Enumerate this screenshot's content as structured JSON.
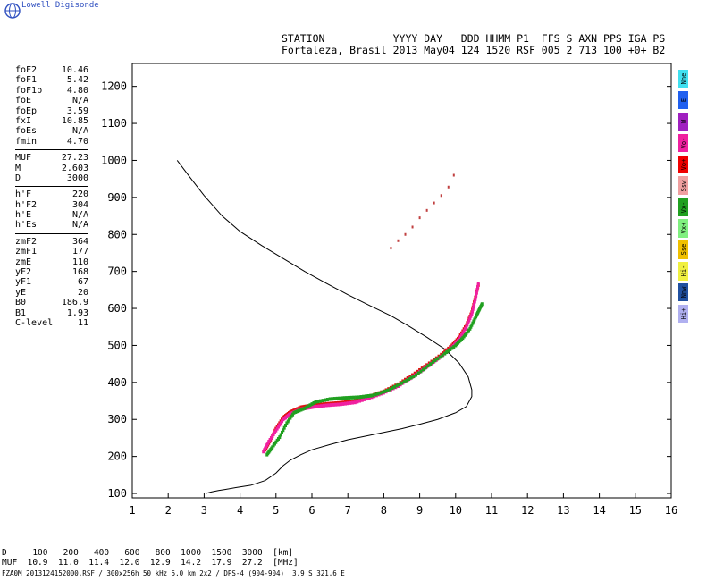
{
  "brand": "Lowell Digisonde",
  "header": {
    "line1": "STATION           YYYY DAY   DDD HHMM P1  FFS S AXN PPS IGA PS",
    "line2": "Fortaleza, Brasil 2013 May04 124 1520 RSF 005 2 713 100 +0+ B2"
  },
  "params_group1": [
    {
      "k": "foF2",
      "v": "10.46"
    },
    {
      "k": "foF1",
      "v": "5.42"
    },
    {
      "k": "foF1p",
      "v": "4.80"
    },
    {
      "k": "foE",
      "v": "N/A"
    },
    {
      "k": "foEp",
      "v": "3.59"
    },
    {
      "k": "fxI",
      "v": "10.85"
    },
    {
      "k": "foEs",
      "v": "N/A"
    },
    {
      "k": "fmin",
      "v": "4.70"
    }
  ],
  "params_group2": [
    {
      "k": "MUF",
      "v": "27.23"
    },
    {
      "k": "M",
      "v": "2.603"
    },
    {
      "k": "D",
      "v": "3000"
    }
  ],
  "params_group3": [
    {
      "k": "h'F",
      "v": "220"
    },
    {
      "k": "h'F2",
      "v": "304"
    },
    {
      "k": "h'E",
      "v": "N/A"
    },
    {
      "k": "h'Es",
      "v": "N/A"
    }
  ],
  "params_group4": [
    {
      "k": "zmF2",
      "v": "364"
    },
    {
      "k": "zmF1",
      "v": "177"
    },
    {
      "k": "zmE",
      "v": "110"
    },
    {
      "k": "yF2",
      "v": "168"
    },
    {
      "k": "yF1",
      "v": "67"
    },
    {
      "k": "yE",
      "v": "20"
    },
    {
      "k": "B0",
      "v": "186.9"
    },
    {
      "k": "B1",
      "v": "1.93"
    },
    {
      "k": "C-level",
      "v": "11"
    }
  ],
  "modes": [
    {
      "label": "Nne",
      "color": "#40e0f0"
    },
    {
      "label": "E",
      "color": "#2060f0"
    },
    {
      "label": "W",
      "color": "#a020c0"
    },
    {
      "label": "Vo-",
      "color": "#f020a0"
    },
    {
      "label": "Vo+",
      "color": "#f00000"
    },
    {
      "label": "Ssw",
      "color": "#f0a0a0"
    },
    {
      "label": "Vx-",
      "color": "#20a020"
    },
    {
      "label": "Vx+",
      "color": "#80f080"
    },
    {
      "label": "Sse",
      "color": "#f0c000"
    },
    {
      "label": "Hi-",
      "color": "#f0f040"
    },
    {
      "label": "Nnw",
      "color": "#2050a0"
    },
    {
      "label": "Hi+",
      "color": "#b0b0f0"
    }
  ],
  "muf_table": {
    "row1": "D     100   200   400   600   800  1000  1500  3000  [km]",
    "row2": "MUF  10.9  11.0  11.4  12.0  12.9  14.2  17.9  27.2  [MHz]"
  },
  "footer": "FZA0M_2013124152000.RSF / 300x256h 50 kHz 5.0 km 2x2 / DPS-4 (904-904)  3.9 S 321.6 E",
  "chart_data": {
    "type": "scatter",
    "title": "",
    "xlabel": "",
    "ylabel": "",
    "xlim": [
      1,
      16
    ],
    "ylim": [
      88,
      1262
    ],
    "xticks": [
      1,
      2,
      3,
      4,
      5,
      6,
      7,
      8,
      9,
      10,
      11,
      12,
      13,
      14,
      15,
      16
    ],
    "yticks": [
      100,
      200,
      300,
      400,
      500,
      600,
      700,
      800,
      900,
      1000,
      1100,
      1200
    ],
    "grid": false,
    "series": [
      {
        "color": "#000000",
        "style": "line",
        "x": [
          2.25,
          2.6,
          3.0,
          3.5,
          4.0,
          4.6,
          5.2,
          5.8,
          6.4,
          7.0,
          7.6,
          8.2,
          8.7,
          9.2,
          9.7,
          10.1,
          10.35,
          10.45,
          10.45,
          10.3,
          10.0,
          9.5,
          9.0,
          8.5,
          8.0,
          7.5,
          7.0,
          6.5,
          6.0,
          5.7,
          5.4,
          5.2,
          5.0,
          4.7,
          4.3,
          3.9,
          3.6,
          3.4,
          3.2,
          3.05
        ],
        "y": [
          1000,
          955,
          905,
          850,
          808,
          770,
          735,
          700,
          668,
          637,
          608,
          580,
          552,
          522,
          490,
          452,
          415,
          380,
          362,
          335,
          318,
          300,
          287,
          275,
          265,
          255,
          245,
          232,
          218,
          205,
          190,
          175,
          155,
          135,
          122,
          116,
          111,
          108,
          104,
          100
        ]
      },
      {
        "color": "#e01010",
        "style": "trace",
        "x": [
          4.7,
          4.85,
          5.0,
          5.2,
          5.4,
          5.7,
          6.0,
          6.4,
          6.8,
          7.2,
          7.6,
          8.0,
          8.4,
          8.8,
          9.2,
          9.6,
          9.9,
          10.1,
          10.3,
          10.45,
          10.55,
          10.65
        ],
        "y": [
          218,
          245,
          275,
          305,
          320,
          333,
          338,
          342,
          345,
          350,
          362,
          376,
          395,
          420,
          447,
          475,
          500,
          522,
          555,
          590,
          630,
          670
        ]
      },
      {
        "color": "#f020a0",
        "style": "trace",
        "x": [
          4.65,
          4.8,
          5.0,
          5.2,
          5.4,
          5.7,
          6.0,
          6.4,
          6.8,
          7.2,
          7.6,
          8.0,
          8.4,
          8.8,
          9.2,
          9.6,
          9.9,
          10.1,
          10.3,
          10.45,
          10.55,
          10.65
        ],
        "y": [
          213,
          240,
          270,
          300,
          315,
          328,
          333,
          338,
          341,
          346,
          358,
          372,
          390,
          415,
          442,
          470,
          495,
          517,
          550,
          585,
          625,
          675
        ]
      },
      {
        "color": "#20a020",
        "style": "trace",
        "x": [
          4.75,
          4.9,
          5.1,
          5.3,
          5.5,
          5.8,
          6.1,
          6.5,
          6.9,
          7.3,
          7.7,
          8.1,
          8.5,
          8.9,
          9.3,
          9.7,
          10.0,
          10.2,
          10.4,
          10.55,
          10.65,
          10.75
        ],
        "y": [
          205,
          225,
          252,
          290,
          318,
          330,
          347,
          355,
          358,
          360,
          365,
          378,
          398,
          420,
          450,
          478,
          500,
          520,
          545,
          575,
          595,
          615
        ]
      },
      {
        "color": "#c04040",
        "style": "dots",
        "x": [
          8.2,
          8.4,
          8.6,
          8.8,
          9.0,
          9.2,
          9.4,
          9.6,
          9.8,
          9.95
        ],
        "y": [
          763,
          783,
          800,
          820,
          845,
          865,
          885,
          905,
          928,
          960
        ]
      }
    ]
  }
}
